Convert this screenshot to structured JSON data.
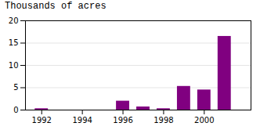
{
  "chart_data": {
    "type": "bar",
    "title": "Thousands of acres",
    "x": [
      1992,
      1993,
      1994,
      1995,
      1996,
      1997,
      1998,
      1999,
      2000,
      2001
    ],
    "values": [
      0.3,
      0.0,
      0.0,
      0.0,
      2.0,
      0.7,
      0.3,
      5.3,
      4.5,
      16.5
    ],
    "color": "#800080",
    "xlim": [
      1991.2,
      2002.3
    ],
    "xticks": [
      1992,
      1994,
      1996,
      1998,
      2000
    ],
    "ylim": [
      0,
      20
    ],
    "yticks": [
      0,
      5,
      10,
      15,
      20
    ],
    "grid": true
  }
}
